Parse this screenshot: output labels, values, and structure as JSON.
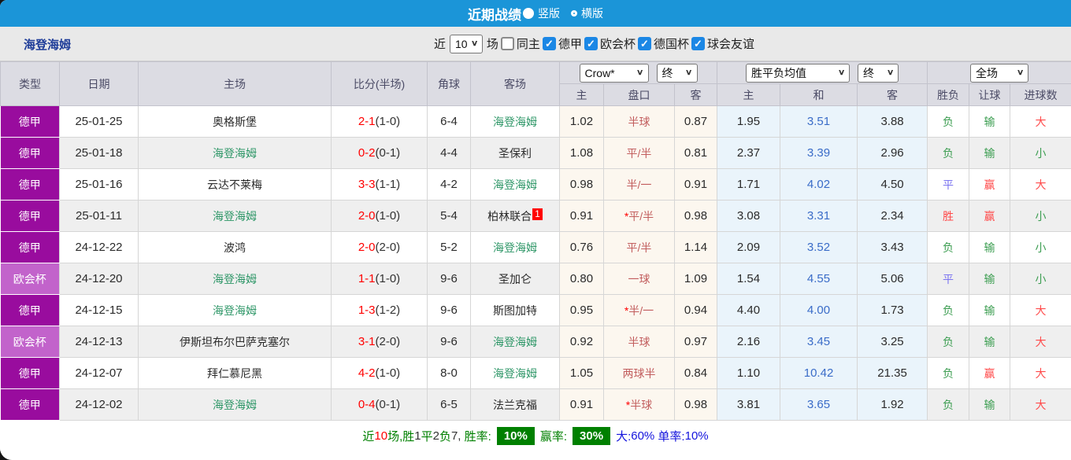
{
  "colors": {
    "topbar_blue": "#1b95d8",
    "league_dark_purple": "#990c9e",
    "league_light_purple": "#c263cb",
    "team_highlight_green": "#2f9768",
    "score_red": "#ff0000",
    "handicap_line_red": "#c25e5e",
    "draw_odds_blue": "#3a6cc8",
    "result_green": "#3d9e52",
    "result_red": "#ff4a4a",
    "result_blue": "#7b74f0",
    "footer_green": "#008000",
    "footer_blue": "#1414dd",
    "asian_bg": "#fcf7ef",
    "europe_bg": "#eaf4fb"
  },
  "icons": {
    "check": "✓",
    "chevron": "∨"
  },
  "topbar": {
    "title": "近期战绩",
    "options": [
      {
        "label": "竖版",
        "selected": true
      },
      {
        "label": "横版",
        "selected": false
      }
    ]
  },
  "filterbar": {
    "team": "海登海姆",
    "near_label": "近",
    "matches_count": "10",
    "field_label": "场",
    "same_host_label": "同主",
    "same_host_checked": false,
    "leagues": [
      {
        "label": "德甲",
        "checked": true
      },
      {
        "label": "欧会杯",
        "checked": true
      },
      {
        "label": "德国杯",
        "checked": true
      },
      {
        "label": "球会友谊",
        "checked": true
      }
    ]
  },
  "table": {
    "left_headers": [
      "类型",
      "日期",
      "主场",
      "比分(半场)",
      "角球",
      "客场"
    ],
    "selects": {
      "company": "Crow*",
      "company_period": "终",
      "avg": "胜平负均值",
      "avg_period": "终",
      "scope": "全场"
    },
    "sub_headers": [
      "主",
      "盘口",
      "客",
      "主",
      "和",
      "客",
      "胜负",
      "让球",
      "进球数"
    ],
    "rows": [
      {
        "league": "德甲",
        "league_type": "dejia",
        "date": "25-01-25",
        "home": "奥格斯堡",
        "home_hl": false,
        "score": "2-1",
        "half": "(1-0)",
        "corner": "6-4",
        "away": "海登海姆",
        "away_hl": true,
        "away_badge": "",
        "ah_home": "1.02",
        "ah_line": "半球",
        "ah_star": false,
        "ah_away": "0.87",
        "eu_home": "1.95",
        "eu_draw": "3.51",
        "eu_away": "3.88",
        "res": "负",
        "res_c": "green",
        "let": "输",
        "let_c": "green",
        "goal": "大",
        "goal_c": "red"
      },
      {
        "league": "德甲",
        "league_type": "dejia",
        "date": "25-01-18",
        "home": "海登海姆",
        "home_hl": true,
        "score": "0-2",
        "half": "(0-1)",
        "corner": "4-4",
        "away": "圣保利",
        "away_hl": false,
        "away_badge": "",
        "ah_home": "1.08",
        "ah_line": "平/半",
        "ah_star": false,
        "ah_away": "0.81",
        "eu_home": "2.37",
        "eu_draw": "3.39",
        "eu_away": "2.96",
        "res": "负",
        "res_c": "green",
        "let": "输",
        "let_c": "green",
        "goal": "小",
        "goal_c": "green"
      },
      {
        "league": "德甲",
        "league_type": "dejia",
        "date": "25-01-16",
        "home": "云达不莱梅",
        "home_hl": false,
        "score": "3-3",
        "half": "(1-1)",
        "corner": "4-2",
        "away": "海登海姆",
        "away_hl": true,
        "away_badge": "",
        "ah_home": "0.98",
        "ah_line": "半/一",
        "ah_star": false,
        "ah_away": "0.91",
        "eu_home": "1.71",
        "eu_draw": "4.02",
        "eu_away": "4.50",
        "res": "平",
        "res_c": "blue",
        "let": "赢",
        "let_c": "red",
        "goal": "大",
        "goal_c": "red"
      },
      {
        "league": "德甲",
        "league_type": "dejia",
        "date": "25-01-11",
        "home": "海登海姆",
        "home_hl": true,
        "score": "2-0",
        "half": "(1-0)",
        "corner": "5-4",
        "away": "柏林联合",
        "away_hl": false,
        "away_badge": "1",
        "ah_home": "0.91",
        "ah_line": "平/半",
        "ah_star": true,
        "ah_away": "0.98",
        "eu_home": "3.08",
        "eu_draw": "3.31",
        "eu_away": "2.34",
        "res": "胜",
        "res_c": "red",
        "let": "赢",
        "let_c": "red",
        "goal": "小",
        "goal_c": "green"
      },
      {
        "league": "德甲",
        "league_type": "dejia",
        "date": "24-12-22",
        "home": "波鸿",
        "home_hl": false,
        "score": "2-0",
        "half": "(2-0)",
        "corner": "5-2",
        "away": "海登海姆",
        "away_hl": true,
        "away_badge": "",
        "ah_home": "0.76",
        "ah_line": "平/半",
        "ah_star": false,
        "ah_away": "1.14",
        "eu_home": "2.09",
        "eu_draw": "3.52",
        "eu_away": "3.43",
        "res": "负",
        "res_c": "green",
        "let": "输",
        "let_c": "green",
        "goal": "小",
        "goal_c": "green"
      },
      {
        "league": "欧会杯",
        "league_type": "ouhui",
        "date": "24-12-20",
        "home": "海登海姆",
        "home_hl": true,
        "score": "1-1",
        "half": "(1-0)",
        "corner": "9-6",
        "away": "圣加仑",
        "away_hl": false,
        "away_badge": "",
        "ah_home": "0.80",
        "ah_line": "一球",
        "ah_star": false,
        "ah_away": "1.09",
        "eu_home": "1.54",
        "eu_draw": "4.55",
        "eu_away": "5.06",
        "res": "平",
        "res_c": "blue",
        "let": "输",
        "let_c": "green",
        "goal": "小",
        "goal_c": "green"
      },
      {
        "league": "德甲",
        "league_type": "dejia",
        "date": "24-12-15",
        "home": "海登海姆",
        "home_hl": true,
        "score": "1-3",
        "half": "(1-2)",
        "corner": "9-6",
        "away": "斯图加特",
        "away_hl": false,
        "away_badge": "",
        "ah_home": "0.95",
        "ah_line": "半/一",
        "ah_star": true,
        "ah_away": "0.94",
        "eu_home": "4.40",
        "eu_draw": "4.00",
        "eu_away": "1.73",
        "res": "负",
        "res_c": "green",
        "let": "输",
        "let_c": "green",
        "goal": "大",
        "goal_c": "red"
      },
      {
        "league": "欧会杯",
        "league_type": "ouhui",
        "date": "24-12-13",
        "home": "伊斯坦布尔巴萨克塞尔",
        "home_hl": false,
        "score": "3-1",
        "half": "(2-0)",
        "corner": "9-6",
        "away": "海登海姆",
        "away_hl": true,
        "away_badge": "",
        "ah_home": "0.92",
        "ah_line": "半球",
        "ah_star": false,
        "ah_away": "0.97",
        "eu_home": "2.16",
        "eu_draw": "3.45",
        "eu_away": "3.25",
        "res": "负",
        "res_c": "green",
        "let": "输",
        "let_c": "green",
        "goal": "大",
        "goal_c": "red"
      },
      {
        "league": "德甲",
        "league_type": "dejia",
        "date": "24-12-07",
        "home": "拜仁慕尼黑",
        "home_hl": false,
        "score": "4-2",
        "half": "(1-0)",
        "corner": "8-0",
        "away": "海登海姆",
        "away_hl": true,
        "away_badge": "",
        "ah_home": "1.05",
        "ah_line": "两球半",
        "ah_star": false,
        "ah_away": "0.84",
        "eu_home": "1.10",
        "eu_draw": "10.42",
        "eu_away": "21.35",
        "res": "负",
        "res_c": "green",
        "let": "赢",
        "let_c": "red",
        "goal": "大",
        "goal_c": "red"
      },
      {
        "league": "德甲",
        "league_type": "dejia",
        "date": "24-12-02",
        "home": "海登海姆",
        "home_hl": true,
        "score": "0-4",
        "half": "(0-1)",
        "corner": "6-5",
        "away": "法兰克福",
        "away_hl": false,
        "away_badge": "",
        "ah_home": "0.91",
        "ah_line": "半球",
        "ah_star": true,
        "ah_away": "0.98",
        "eu_home": "3.81",
        "eu_draw": "3.65",
        "eu_away": "1.92",
        "res": "负",
        "res_c": "green",
        "let": "输",
        "let_c": "green",
        "goal": "大",
        "goal_c": "red"
      }
    ]
  },
  "footer": {
    "segments": [
      {
        "t": "近",
        "c": "green"
      },
      {
        "t": "10",
        "c": "red"
      },
      {
        "t": "场,",
        "c": "green"
      },
      {
        "t": "胜",
        "c": "green"
      },
      {
        "t": "1",
        "c": "dark"
      },
      {
        "t": "平",
        "c": "green"
      },
      {
        "t": "2",
        "c": "dark"
      },
      {
        "t": "负",
        "c": "green"
      },
      {
        "t": "7, ",
        "c": "dark"
      },
      {
        "t": "胜率:",
        "c": "green"
      },
      {
        "t": "10%",
        "c": "badge"
      },
      {
        "t": "赢率:",
        "c": "green"
      },
      {
        "t": "30%",
        "c": "badge"
      },
      {
        "t": "大:",
        "c": "blue"
      },
      {
        "t": "60%",
        "c": "blue"
      },
      {
        "t": " 单率:",
        "c": "blue"
      },
      {
        "t": "10%",
        "c": "blue"
      }
    ]
  }
}
